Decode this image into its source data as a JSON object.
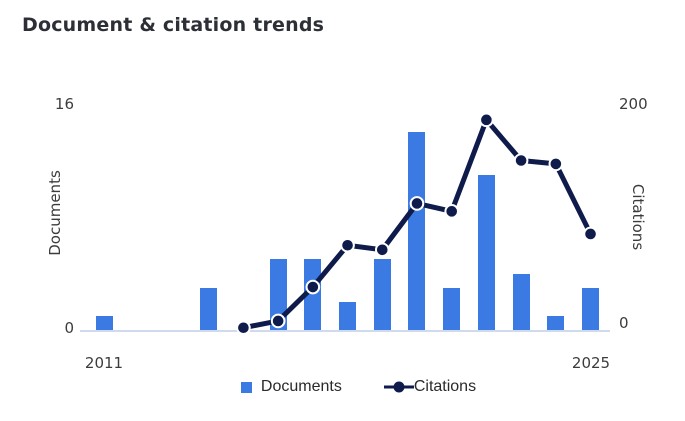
{
  "title": "Document & citation trends",
  "colors": {
    "bar": "#3B7AE2",
    "line": "#0E1B4B",
    "dot_ring": "#FFFFFF",
    "axis_line": "#CFDAEC",
    "title_text": "#2D2F36",
    "axis_text": "#3C3C3C"
  },
  "left_axis": {
    "label": "Documents",
    "top_tick": "16",
    "bottom_tick": "0"
  },
  "right_axis": {
    "label": "Citations",
    "top_tick": "200",
    "bottom_tick": "0"
  },
  "x_axis": {
    "first_label": "2011",
    "last_label": "2025"
  },
  "legend": {
    "documents_label": "Documents",
    "citations_label": "Citations"
  },
  "chart_data": {
    "type": "bar+line",
    "title": "Document & citation trends",
    "categories": [
      2011,
      2012,
      2013,
      2014,
      2015,
      2016,
      2017,
      2018,
      2019,
      2020,
      2021,
      2022,
      2023,
      2024,
      2025
    ],
    "series": [
      {
        "name": "Documents",
        "type": "bar",
        "axis": "left",
        "values": [
          1,
          0,
          0,
          3,
          0,
          5,
          5,
          2,
          5,
          14,
          3,
          11,
          4,
          1,
          3
        ]
      },
      {
        "name": "Citations",
        "type": "line",
        "axis": "right",
        "values": [
          null,
          null,
          null,
          null,
          2,
          8,
          38,
          75,
          71,
          112,
          105,
          186,
          150,
          147,
          85
        ]
      }
    ],
    "left_ylabel": "Documents",
    "right_ylabel": "Citations",
    "left_ylim": [
      0,
      16
    ],
    "right_ylim": [
      0,
      200
    ],
    "x_tick_labels_shown": [
      "2011",
      "2025"
    ],
    "grid": false,
    "legend_position": "bottom"
  }
}
